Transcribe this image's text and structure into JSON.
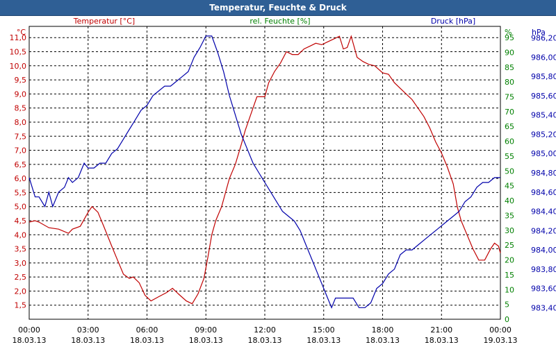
{
  "window": {
    "title": "Temperatur, Feuchte & Druck"
  },
  "colors": {
    "temperature": "#c00000",
    "humidity": "#008000",
    "pressure": "#0000aa",
    "grid": "#000000"
  },
  "chart_data": {
    "type": "line",
    "title": "Temperatur, Feuchte & Druck",
    "legend": {
      "temperature": "Temperatur [°C]",
      "humidity": "rel. Feuchte [%]",
      "pressure": "Druck [hPa]"
    },
    "axes": {
      "temperature": {
        "unit": "°C",
        "range": [
          1.0,
          11.4
        ],
        "ticks": [
          "1,5",
          "2,0",
          "2,5",
          "3,0",
          "3,5",
          "4,0",
          "4,5",
          "5,0",
          "5,5",
          "6,0",
          "6,5",
          "7,0",
          "7,5",
          "8,0",
          "8,5",
          "9,0",
          "9,5",
          "10,0",
          "10,5",
          "11,0"
        ]
      },
      "humidity": {
        "unit": "%",
        "range": [
          0,
          98.75
        ],
        "ticks": [
          "0",
          "5",
          "10",
          "15",
          "20",
          "25",
          "30",
          "35",
          "40",
          "45",
          "50",
          "55",
          "60",
          "65",
          "70",
          "75",
          "80",
          "85",
          "90",
          "95"
        ]
      },
      "pressure": {
        "unit": "hPa",
        "range": [
          983.28,
          986.32
        ],
        "ticks": [
          "983,40",
          "983,60",
          "983,80",
          "984,00",
          "984,20",
          "984,40",
          "984,60",
          "984,80",
          "985,00",
          "985,20",
          "985,40",
          "985,60",
          "985,80",
          "986,00",
          "986,20"
        ]
      },
      "x": {
        "ticks": [
          {
            "time": "00:00",
            "date": "18.03.13"
          },
          {
            "time": "03:00",
            "date": "18.03.13"
          },
          {
            "time": "06:00",
            "date": "18.03.13"
          },
          {
            "time": "09:00",
            "date": "18.03.13"
          },
          {
            "time": "12:00",
            "date": "18.03.13"
          },
          {
            "time": "15:00",
            "date": "18.03.13"
          },
          {
            "time": "18:00",
            "date": "18.03.13"
          },
          {
            "time": "21:00",
            "date": "18.03.13"
          },
          {
            "time": "00:00",
            "date": "19.03.13"
          }
        ]
      }
    },
    "series": [
      {
        "name": "Temperatur",
        "axis": "temperature",
        "points": [
          [
            0,
            4.45
          ],
          [
            0.3,
            4.5
          ],
          [
            0.5,
            4.45
          ],
          [
            1,
            4.25
          ],
          [
            1.5,
            4.2
          ],
          [
            2,
            4.05
          ],
          [
            2.2,
            4.2
          ],
          [
            2.6,
            4.3
          ],
          [
            3,
            4.8
          ],
          [
            3.2,
            5.0
          ],
          [
            3.5,
            4.8
          ],
          [
            3.8,
            4.3
          ],
          [
            4.2,
            3.6
          ],
          [
            4.5,
            3.1
          ],
          [
            4.8,
            2.6
          ],
          [
            5.1,
            2.45
          ],
          [
            5.3,
            2.5
          ],
          [
            5.6,
            2.3
          ],
          [
            5.9,
            1.85
          ],
          [
            6.2,
            1.65
          ],
          [
            6.6,
            1.8
          ],
          [
            7,
            1.95
          ],
          [
            7.3,
            2.1
          ],
          [
            7.6,
            1.9
          ],
          [
            8,
            1.65
          ],
          [
            8.3,
            1.55
          ],
          [
            8.6,
            1.9
          ],
          [
            8.9,
            2.45
          ],
          [
            9.1,
            3.2
          ],
          [
            9.3,
            4.0
          ],
          [
            9.5,
            4.5
          ],
          [
            9.8,
            5.0
          ],
          [
            10,
            5.5
          ],
          [
            10.2,
            6.0
          ],
          [
            10.5,
            6.5
          ],
          [
            10.8,
            7.2
          ],
          [
            11,
            7.7
          ],
          [
            11.3,
            8.3
          ],
          [
            11.6,
            8.9
          ],
          [
            12,
            8.9
          ],
          [
            12.2,
            9.4
          ],
          [
            12.5,
            9.8
          ],
          [
            12.8,
            10.1
          ],
          [
            13.1,
            10.5
          ],
          [
            13.4,
            10.4
          ],
          [
            13.7,
            10.4
          ],
          [
            14,
            10.6
          ],
          [
            14.3,
            10.7
          ],
          [
            14.6,
            10.8
          ],
          [
            14.9,
            10.75
          ],
          [
            15.2,
            10.85
          ],
          [
            15.5,
            10.95
          ],
          [
            15.8,
            11.05
          ],
          [
            16.0,
            10.6
          ],
          [
            16.2,
            10.65
          ],
          [
            16.4,
            11.05
          ],
          [
            16.7,
            10.3
          ],
          [
            17.0,
            10.15
          ],
          [
            17.3,
            10.05
          ],
          [
            17.6,
            10.0
          ],
          [
            18.0,
            9.75
          ],
          [
            18.3,
            9.7
          ],
          [
            18.6,
            9.4
          ],
          [
            18.9,
            9.2
          ],
          [
            19.2,
            9.0
          ],
          [
            19.5,
            8.8
          ],
          [
            19.8,
            8.5
          ],
          [
            20.1,
            8.2
          ],
          [
            20.4,
            7.8
          ],
          [
            20.7,
            7.3
          ],
          [
            21.0,
            6.9
          ],
          [
            21.3,
            6.4
          ],
          [
            21.6,
            5.8
          ],
          [
            21.8,
            5.0
          ],
          [
            22.0,
            4.5
          ],
          [
            22.3,
            4.0
          ],
          [
            22.6,
            3.5
          ],
          [
            22.9,
            3.1
          ],
          [
            23.2,
            3.1
          ],
          [
            23.5,
            3.5
          ],
          [
            23.7,
            3.7
          ],
          [
            23.9,
            3.6
          ],
          [
            24.0,
            3.35
          ]
        ]
      },
      {
        "name": "rel. Feuchte",
        "axis": "humidity",
        "points": []
      },
      {
        "name": "Druck",
        "axis": "pressure",
        "points": [
          [
            0,
            984.75
          ],
          [
            0.3,
            984.55
          ],
          [
            0.5,
            984.55
          ],
          [
            0.8,
            984.45
          ],
          [
            1,
            984.6
          ],
          [
            1.2,
            984.45
          ],
          [
            1.5,
            984.6
          ],
          [
            1.8,
            984.65
          ],
          [
            2,
            984.75
          ],
          [
            2.2,
            984.7
          ],
          [
            2.5,
            984.75
          ],
          [
            2.8,
            984.9
          ],
          [
            3,
            984.85
          ],
          [
            3.3,
            984.85
          ],
          [
            3.6,
            984.9
          ],
          [
            3.9,
            984.9
          ],
          [
            4.2,
            985.0
          ],
          [
            4.5,
            985.05
          ],
          [
            4.8,
            985.15
          ],
          [
            5.1,
            985.25
          ],
          [
            5.4,
            985.35
          ],
          [
            5.7,
            985.45
          ],
          [
            6.0,
            985.5
          ],
          [
            6.3,
            985.6
          ],
          [
            6.6,
            985.65
          ],
          [
            6.9,
            985.7
          ],
          [
            7.2,
            985.7
          ],
          [
            7.5,
            985.75
          ],
          [
            7.8,
            985.8
          ],
          [
            8.1,
            985.85
          ],
          [
            8.4,
            986.0
          ],
          [
            8.7,
            986.1
          ],
          [
            9.0,
            986.22
          ],
          [
            9.3,
            986.22
          ],
          [
            9.6,
            986.05
          ],
          [
            9.9,
            985.85
          ],
          [
            10.2,
            985.6
          ],
          [
            10.5,
            985.4
          ],
          [
            10.8,
            985.2
          ],
          [
            11.1,
            985.05
          ],
          [
            11.4,
            984.9
          ],
          [
            11.7,
            984.8
          ],
          [
            12.0,
            984.7
          ],
          [
            12.3,
            984.6
          ],
          [
            12.6,
            984.5
          ],
          [
            12.9,
            984.4
          ],
          [
            13.2,
            984.35
          ],
          [
            13.5,
            984.3
          ],
          [
            13.8,
            984.2
          ],
          [
            14.1,
            984.05
          ],
          [
            14.4,
            983.9
          ],
          [
            14.7,
            983.75
          ],
          [
            15.0,
            983.6
          ],
          [
            15.2,
            983.5
          ],
          [
            15.4,
            983.4
          ],
          [
            15.6,
            983.5
          ],
          [
            15.9,
            983.5
          ],
          [
            16.2,
            983.5
          ],
          [
            16.5,
            983.5
          ],
          [
            16.8,
            983.4
          ],
          [
            17.1,
            983.4
          ],
          [
            17.4,
            983.45
          ],
          [
            17.7,
            983.6
          ],
          [
            18.0,
            983.65
          ],
          [
            18.3,
            983.75
          ],
          [
            18.6,
            983.8
          ],
          [
            18.9,
            983.95
          ],
          [
            19.2,
            984.0
          ],
          [
            19.5,
            984.0
          ],
          [
            19.8,
            984.05
          ],
          [
            20.1,
            984.1
          ],
          [
            20.4,
            984.15
          ],
          [
            20.7,
            984.2
          ],
          [
            21.0,
            984.25
          ],
          [
            21.3,
            984.3
          ],
          [
            21.6,
            984.35
          ],
          [
            21.9,
            984.4
          ],
          [
            22.2,
            984.5
          ],
          [
            22.5,
            984.55
          ],
          [
            22.8,
            984.65
          ],
          [
            23.1,
            984.7
          ],
          [
            23.4,
            984.7
          ],
          [
            23.7,
            984.75
          ],
          [
            24.0,
            984.75
          ]
        ]
      }
    ]
  }
}
